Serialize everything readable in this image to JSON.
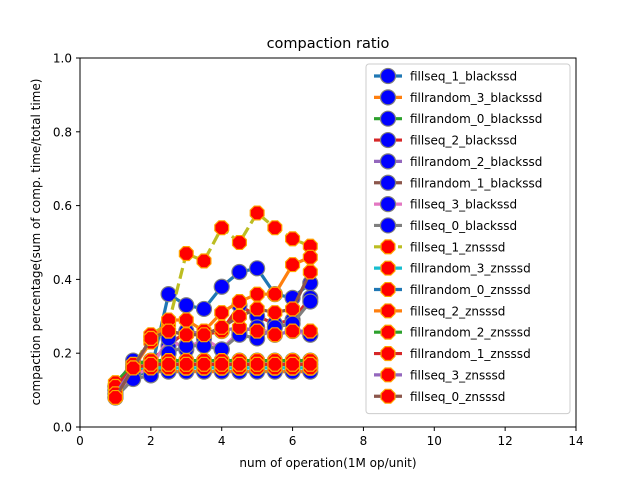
{
  "chart_data": {
    "type": "line",
    "title": "compaction ratio",
    "xlabel": "num of operation(1M op/unit)",
    "ylabel": "compaction percentage(sum of comp. time/total time)",
    "xlim": [
      0,
      14
    ],
    "ylim": [
      0,
      1.0
    ],
    "xticks": [
      0,
      2,
      4,
      6,
      8,
      10,
      12,
      14
    ],
    "yticks": [
      0.0,
      0.2,
      0.4,
      0.6,
      0.8,
      1.0
    ],
    "xtick_labels": [
      "0",
      "2",
      "4",
      "6",
      "8",
      "10",
      "12",
      "14"
    ],
    "ytick_labels": [
      "0.0",
      "0.2",
      "0.4",
      "0.6",
      "0.8",
      "1.0"
    ],
    "grid": false,
    "legend_position": "upper-right",
    "x": [
      1.0,
      1.5,
      2.0,
      2.5,
      3.0,
      3.5,
      4.0,
      4.5,
      5.0,
      5.5,
      6.0,
      6.5
    ],
    "series": [
      {
        "name": "fillseq_1_blackssd",
        "color": "#1f77b4",
        "marker": "circle",
        "values": [
          0.09,
          0.14,
          0.15,
          0.36,
          0.33,
          0.32,
          0.38,
          0.42,
          0.43,
          0.36,
          0.35,
          0.39
        ]
      },
      {
        "name": "fillrandom_3_blackssd",
        "color": "#ff7f0e",
        "marker": "circle",
        "values": [
          0.1,
          0.15,
          0.15,
          0.15,
          0.15,
          0.15,
          0.15,
          0.15,
          0.15,
          0.15,
          0.15,
          0.15
        ]
      },
      {
        "name": "fillrandom_0_blackssd",
        "color": "#2ca02c",
        "marker": "circle",
        "values": [
          0.11,
          0.16,
          0.16,
          0.17,
          0.17,
          0.17,
          0.17,
          0.17,
          0.17,
          0.17,
          0.17,
          0.17
        ]
      },
      {
        "name": "fillseq_2_blackssd",
        "color": "#d62728",
        "marker": "circle",
        "values": [
          0.09,
          0.17,
          0.18,
          0.22,
          0.26,
          0.25,
          0.26,
          0.33,
          0.3,
          0.28,
          0.29,
          0.35
        ]
      },
      {
        "name": "fillrandom_2_blackssd",
        "color": "#9467bd",
        "marker": "circle",
        "values": [
          0.11,
          0.18,
          0.17,
          0.18,
          0.18,
          0.18,
          0.18,
          0.18,
          0.18,
          0.18,
          0.18,
          0.18
        ]
      },
      {
        "name": "fillrandom_1_blackssd",
        "color": "#8c564b",
        "marker": "circle",
        "values": [
          0.1,
          0.16,
          0.15,
          0.16,
          0.16,
          0.16,
          0.16,
          0.16,
          0.16,
          0.16,
          0.16,
          0.16
        ]
      },
      {
        "name": "fillseq_3_blackssd",
        "color": "#e377c2",
        "marker": "circle",
        "values": [
          0.08,
          0.14,
          0.16,
          0.24,
          0.21,
          0.24,
          0.21,
          0.26,
          0.27,
          0.25,
          0.26,
          0.25
        ]
      },
      {
        "name": "fillseq_0_blackssd",
        "color": "#7f7f7f",
        "marker": "circle",
        "values": [
          0.08,
          0.13,
          0.14,
          0.2,
          0.22,
          0.22,
          0.21,
          0.25,
          0.24,
          0.27,
          0.28,
          0.34
        ]
      },
      {
        "name": "fillseq_1_znsssd",
        "color": "#bcbd22",
        "marker": "octagon",
        "values": [
          0.12,
          0.16,
          0.25,
          0.28,
          0.47,
          0.45,
          0.54,
          0.5,
          0.58,
          0.54,
          0.51,
          0.49
        ]
      },
      {
        "name": "fillrandom_3_znsssd",
        "color": "#17becf",
        "marker": "octagon",
        "values": [
          0.11,
          0.16,
          0.16,
          0.16,
          0.16,
          0.16,
          0.16,
          0.16,
          0.16,
          0.16,
          0.16,
          0.16
        ]
      },
      {
        "name": "fillrandom_0_znsssd",
        "color": "#1f77b4",
        "marker": "octagon",
        "values": [
          0.11,
          0.16,
          0.17,
          0.17,
          0.17,
          0.17,
          0.17,
          0.17,
          0.17,
          0.17,
          0.17,
          0.17
        ]
      },
      {
        "name": "fillseq_2_znsssd",
        "color": "#ff7f0e",
        "marker": "octagon",
        "values": [
          0.08,
          0.16,
          0.23,
          0.29,
          0.29,
          0.26,
          0.31,
          0.34,
          0.36,
          0.36,
          0.44,
          0.46
        ]
      },
      {
        "name": "fillrandom_2_znsssd",
        "color": "#2ca02c",
        "marker": "octagon",
        "values": [
          0.12,
          0.17,
          0.18,
          0.18,
          0.18,
          0.18,
          0.18,
          0.18,
          0.18,
          0.18,
          0.18,
          0.18
        ]
      },
      {
        "name": "fillrandom_1_znsssd",
        "color": "#d62728",
        "marker": "octagon",
        "values": [
          0.11,
          0.16,
          0.17,
          0.17,
          0.17,
          0.17,
          0.17,
          0.17,
          0.17,
          0.17,
          0.17,
          0.17
        ]
      },
      {
        "name": "fillseq_3_znsssd",
        "color": "#9467bd",
        "marker": "octagon",
        "values": [
          0.09,
          0.16,
          0.24,
          0.26,
          0.25,
          0.26,
          0.26,
          0.27,
          0.26,
          0.25,
          0.26,
          0.26
        ]
      },
      {
        "name": "fillseq_0_znsssd",
        "color": "#8c564b",
        "marker": "octagon",
        "values": [
          0.08,
          0.16,
          0.24,
          0.26,
          0.25,
          0.25,
          0.27,
          0.3,
          0.32,
          0.31,
          0.32,
          0.42
        ]
      }
    ]
  },
  "marker_fill": {
    "circle": "#0000ff",
    "octagon": "#ff0000"
  },
  "marker_edge": {
    "circle": "#7f7f7f",
    "octagon": "#ffa500"
  }
}
